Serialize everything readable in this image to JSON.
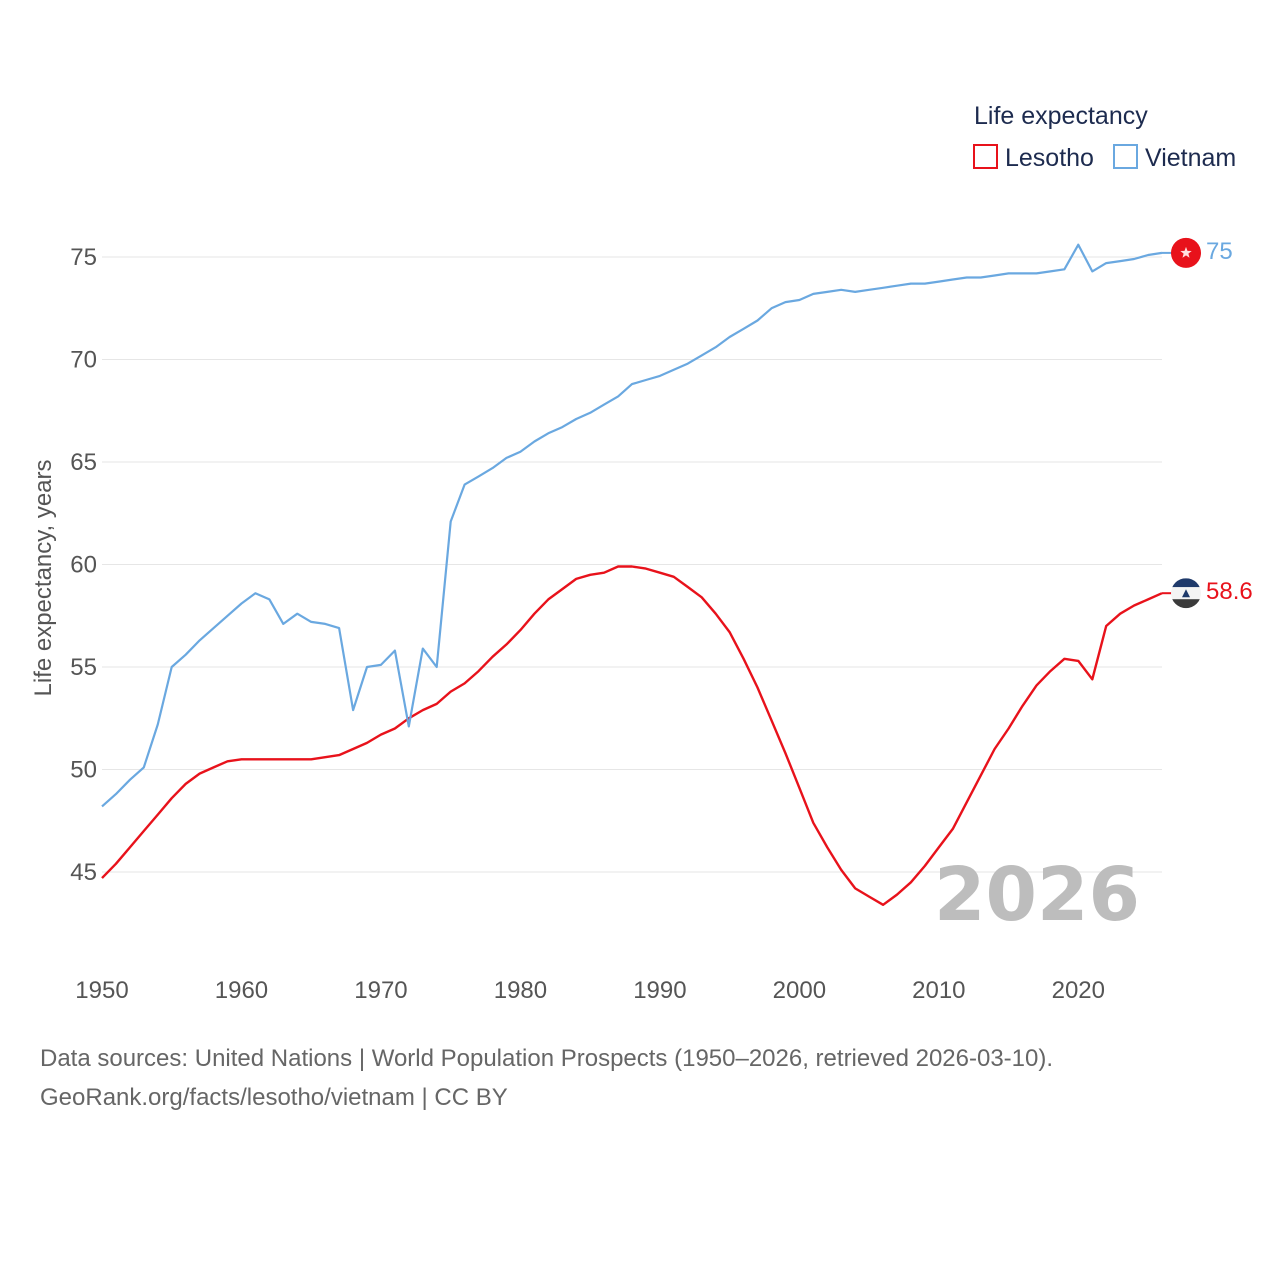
{
  "chart_data": {
    "type": "line",
    "title": "",
    "xlabel": "",
    "ylabel": "Life expectancy, years",
    "xlim": [
      1950,
      2026
    ],
    "ylim": [
      42,
      77
    ],
    "x_ticks": [
      1950,
      1960,
      1970,
      1980,
      1990,
      2000,
      2010,
      2020
    ],
    "y_ticks": [
      45,
      50,
      55,
      60,
      65,
      70,
      75
    ],
    "grid": "horizontal",
    "legend": {
      "title": "Life expectancy",
      "position": "top-right"
    },
    "year_watermark": "2026",
    "x": [
      1950,
      1951,
      1952,
      1953,
      1954,
      1955,
      1956,
      1957,
      1958,
      1959,
      1960,
      1961,
      1962,
      1963,
      1964,
      1965,
      1966,
      1967,
      1968,
      1969,
      1970,
      1971,
      1972,
      1973,
      1974,
      1975,
      1976,
      1977,
      1978,
      1979,
      1980,
      1981,
      1982,
      1983,
      1984,
      1985,
      1986,
      1987,
      1988,
      1989,
      1990,
      1991,
      1992,
      1993,
      1994,
      1995,
      1996,
      1997,
      1998,
      1999,
      2000,
      2001,
      2002,
      2003,
      2004,
      2005,
      2006,
      2007,
      2008,
      2009,
      2010,
      2011,
      2012,
      2013,
      2014,
      2015,
      2016,
      2017,
      2018,
      2019,
      2020,
      2021,
      2022,
      2023,
      2024,
      2025,
      2026
    ],
    "series": [
      {
        "name": "Lesotho",
        "color": "#e8121b",
        "end_label": "58.6",
        "flag_icon": "lesotho-flag-icon",
        "values": [
          44.7,
          45.4,
          46.2,
          47.0,
          47.8,
          48.6,
          49.3,
          49.8,
          50.1,
          50.4,
          50.5,
          50.5,
          50.5,
          50.5,
          50.5,
          50.5,
          50.6,
          50.7,
          51.0,
          51.3,
          51.7,
          52.0,
          52.5,
          52.9,
          53.2,
          53.8,
          54.2,
          54.8,
          55.5,
          56.1,
          56.8,
          57.6,
          58.3,
          58.8,
          59.3,
          59.5,
          59.6,
          59.9,
          59.9,
          59.8,
          59.6,
          59.4,
          58.9,
          58.4,
          57.6,
          56.7,
          55.4,
          54.0,
          52.4,
          50.8,
          49.1,
          47.4,
          46.2,
          45.1,
          44.2,
          43.8,
          43.4,
          43.9,
          44.5,
          45.3,
          46.2,
          47.1,
          48.4,
          49.7,
          51.0,
          52.0,
          53.1,
          54.1,
          54.8,
          55.4,
          55.3,
          54.4,
          57.0,
          57.6,
          58.0,
          58.3,
          58.6
        ]
      },
      {
        "name": "Vietnam",
        "color": "#6aa8e0",
        "end_label": "75",
        "flag_icon": "vietnam-flag-icon",
        "values": [
          48.2,
          48.8,
          49.5,
          50.1,
          52.2,
          55.0,
          55.6,
          56.3,
          56.9,
          57.5,
          58.1,
          58.6,
          58.3,
          57.1,
          57.6,
          57.2,
          57.1,
          56.9,
          52.9,
          55.0,
          55.1,
          55.8,
          52.1,
          55.9,
          55.0,
          62.1,
          63.9,
          64.3,
          64.7,
          65.2,
          65.5,
          66.0,
          66.4,
          66.7,
          67.1,
          67.4,
          67.8,
          68.2,
          68.8,
          69.0,
          69.2,
          69.5,
          69.8,
          70.2,
          70.6,
          71.1,
          71.5,
          71.9,
          72.5,
          72.8,
          72.9,
          73.2,
          73.3,
          73.4,
          73.3,
          73.4,
          73.5,
          73.6,
          73.7,
          73.7,
          73.8,
          73.9,
          74.0,
          74.0,
          74.1,
          74.2,
          74.2,
          74.2,
          74.3,
          74.4,
          75.6,
          74.3,
          74.7,
          74.8,
          74.9,
          75.1,
          75.2
        ]
      }
    ]
  },
  "sources": {
    "line1": "Data sources: United Nations | World Population Prospects (1950–2026, retrieved 2026-03-10).",
    "line2": "GeoRank.org/facts/lesotho/vietnam | CC BY"
  }
}
